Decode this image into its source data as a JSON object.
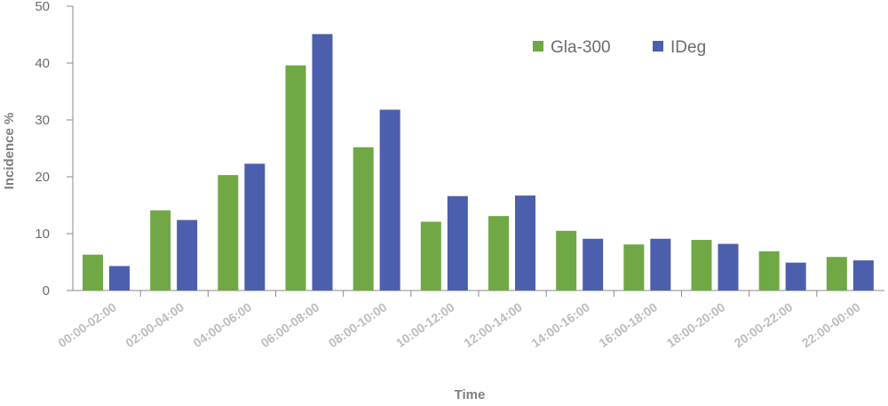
{
  "chart_data": {
    "type": "bar",
    "title": "",
    "xlabel": "Time",
    "ylabel": "Incidence %",
    "ylim": [
      0,
      50
    ],
    "yticks": [
      0,
      10,
      20,
      30,
      40,
      50
    ],
    "grid": false,
    "legend_position": "top-right",
    "categories": [
      "00:00-02:00",
      "02:00-04:00",
      "04:00-06:00",
      "06:00-08:00",
      "08:00-10:00",
      "10:00-12:00",
      "12:00-14:00",
      "14:00-16:00",
      "16:00-18:00",
      "18:00-20:00",
      "20:00-22:00",
      "22:00-00:00"
    ],
    "series": [
      {
        "name": "Gla-300",
        "color": "#70a845",
        "values": [
          6.3,
          14.1,
          20.3,
          39.6,
          25.2,
          12.1,
          13.1,
          10.5,
          8.1,
          8.9,
          6.9,
          5.9
        ]
      },
      {
        "name": "IDeg",
        "color": "#4c5fad",
        "values": [
          4.3,
          12.4,
          22.3,
          45.1,
          31.8,
          16.6,
          16.7,
          9.1,
          9.1,
          8.2,
          4.9,
          5.3
        ]
      }
    ]
  }
}
